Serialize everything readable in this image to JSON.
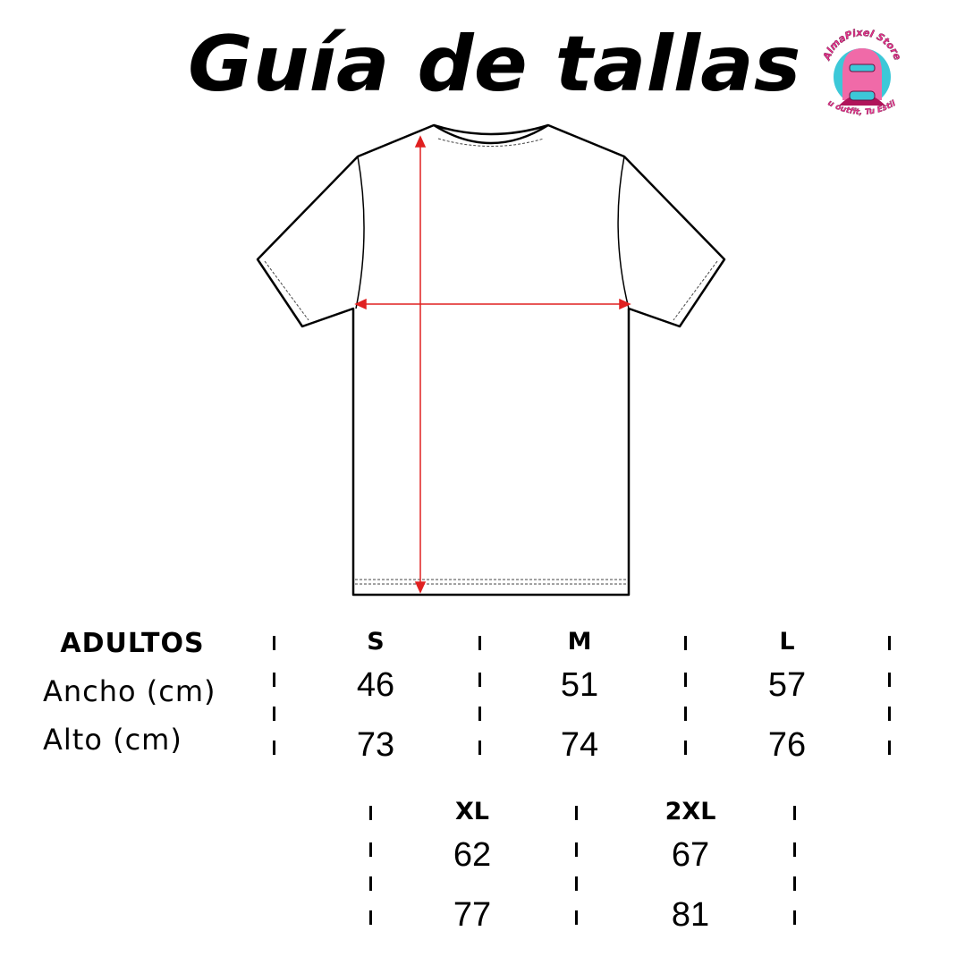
{
  "title": "Guía de tallas",
  "logo": {
    "brand": "AlmaPixel Store",
    "tagline": "Tu outfit, Tu Estilo",
    "colors": {
      "pink": "#e8338c",
      "cyan": "#3cc8d8",
      "magenta": "#b0145a"
    }
  },
  "measure_color": "#e02020",
  "table": {
    "header": "ADULTOS",
    "row_labels": [
      "Ancho (cm)",
      "Alto (cm)"
    ],
    "sizes": [
      {
        "size": "S",
        "ancho": "46",
        "alto": "73"
      },
      {
        "size": "M",
        "ancho": "51",
        "alto": "74"
      },
      {
        "size": "L",
        "ancho": "57",
        "alto": "76"
      },
      {
        "size": "XL",
        "ancho": "62",
        "alto": "77"
      },
      {
        "size": "2XL",
        "ancho": "67",
        "alto": "81"
      }
    ]
  }
}
